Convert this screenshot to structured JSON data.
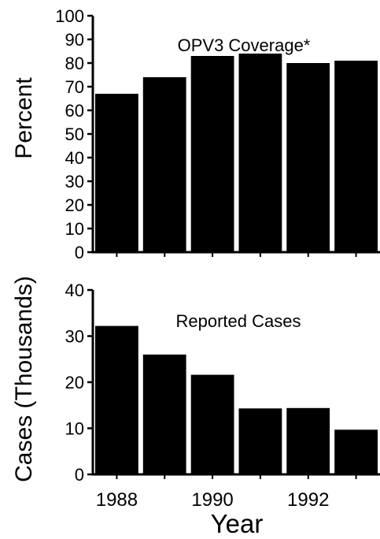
{
  "chart_data": [
    {
      "type": "bar",
      "title": "OPV3 Coverage*",
      "xlabel": "",
      "ylabel": "Percent",
      "ylim": [
        0,
        100
      ],
      "yticks": [
        0,
        10,
        20,
        30,
        40,
        50,
        60,
        70,
        80,
        90,
        100
      ],
      "categories": [
        "1988",
        "1989",
        "1990",
        "1991",
        "1992",
        "1993"
      ],
      "values": [
        67,
        74,
        83,
        84,
        80,
        81
      ],
      "bar_color": "#000000",
      "grid": false
    },
    {
      "type": "bar",
      "title": "Reported Cases",
      "xlabel": "Year",
      "ylabel": "Cases (Thousands)",
      "ylim": [
        0,
        40
      ],
      "yticks": [
        0,
        10,
        20,
        30,
        40
      ],
      "categories": [
        "1988",
        "1989",
        "1990",
        "1991",
        "1992",
        "1993"
      ],
      "xtick_labels": [
        "1988",
        "1990",
        "1992"
      ],
      "values": [
        32.2,
        26,
        21.6,
        14.3,
        14.4,
        9.7
      ],
      "bar_color": "#000000",
      "grid": false
    }
  ]
}
